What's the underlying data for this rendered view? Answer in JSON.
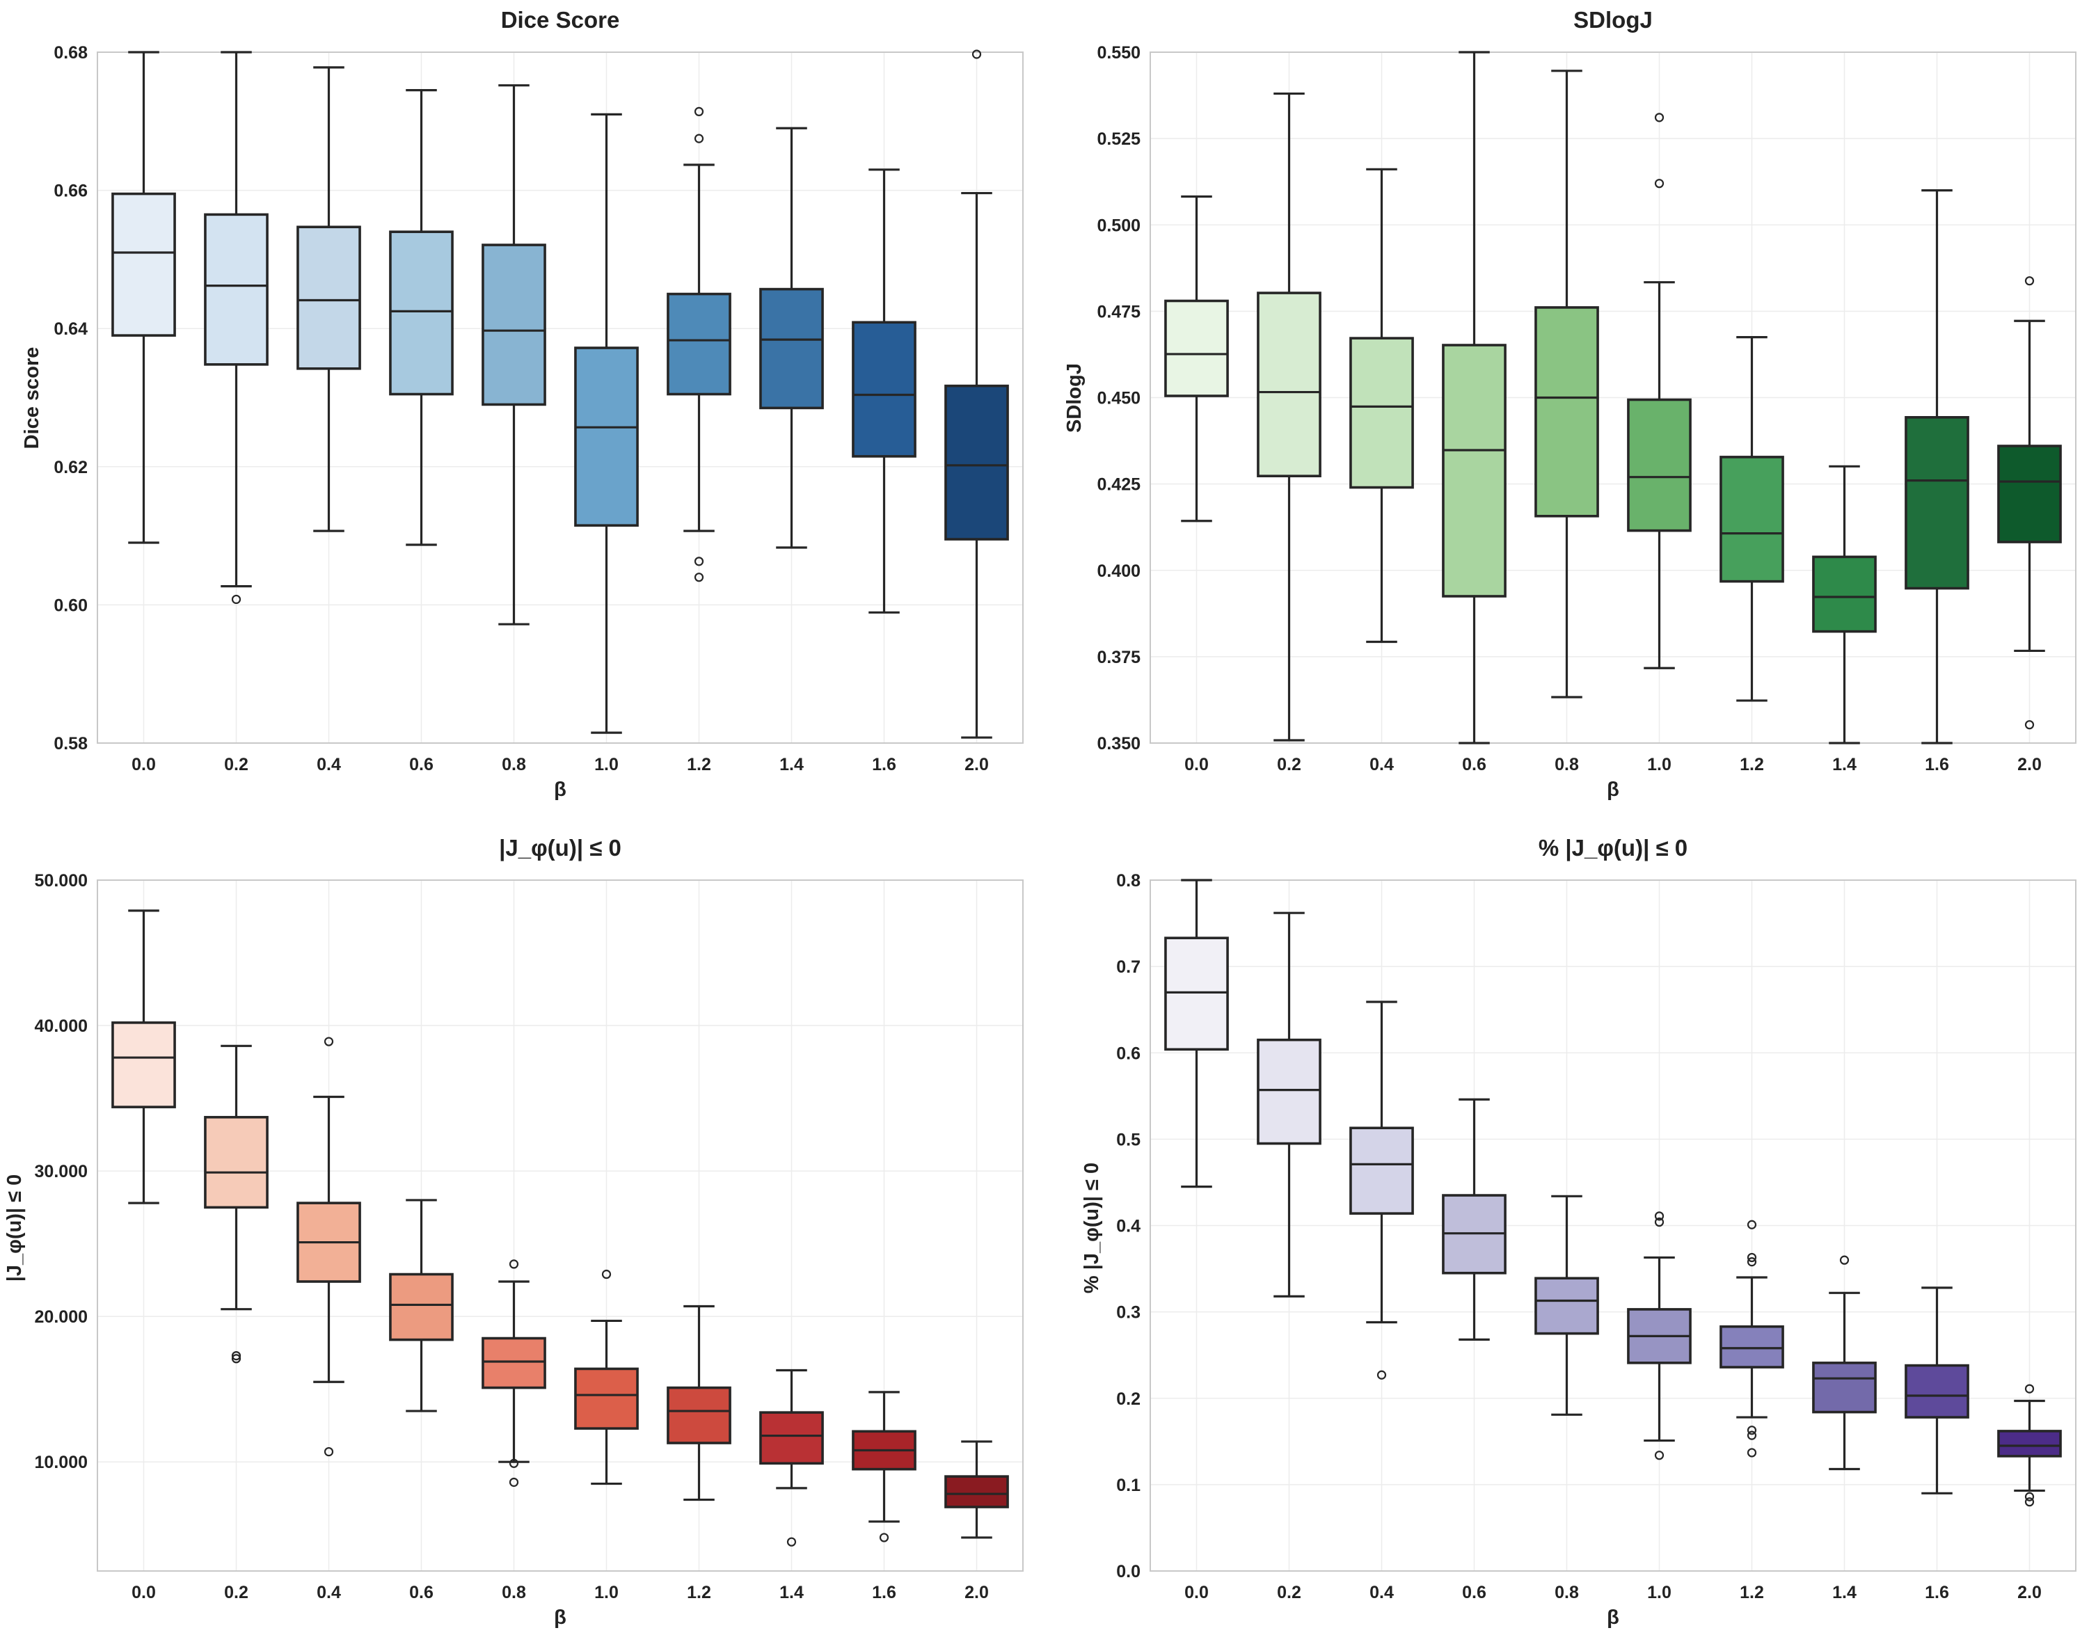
{
  "chart_data": [
    {
      "type": "box",
      "title": "Dice Score",
      "xlabel": "β",
      "ylabel": "Dice score",
      "categories": [
        "0.0",
        "0.2",
        "0.4",
        "0.6",
        "0.8",
        "1.0",
        "1.2",
        "1.4",
        "1.6",
        "2.0"
      ],
      "ylim": [
        0.58,
        0.68
      ],
      "yticks": [
        0.58,
        0.6,
        0.62,
        0.64,
        0.66,
        0.68
      ],
      "ytick_labels": [
        "0.58",
        "0.60",
        "0.62",
        "0.64",
        "0.66",
        "0.68"
      ],
      "colors": [
        "#e4edf6",
        "#d3e3f1",
        "#c3d7e8",
        "#a7c9df",
        "#88b4d2",
        "#6aa3cb",
        "#4e8ab8",
        "#3a73a6",
        "#275d96",
        "#1b4779"
      ],
      "boxes": [
        {
          "whislo": 0.609,
          "q1": 0.639,
          "med": 0.651,
          "q3": 0.6595,
          "whishi": 0.68,
          "fliers": []
        },
        {
          "whislo": 0.6027,
          "q1": 0.6348,
          "med": 0.6462,
          "q3": 0.6565,
          "whishi": 0.68,
          "fliers": [
            0.6008
          ]
        },
        {
          "whislo": 0.6107,
          "q1": 0.6342,
          "med": 0.6441,
          "q3": 0.6547,
          "whishi": 0.6778,
          "fliers": []
        },
        {
          "whislo": 0.6087,
          "q1": 0.6305,
          "med": 0.6425,
          "q3": 0.654,
          "whishi": 0.6745,
          "fliers": []
        },
        {
          "whislo": 0.5972,
          "q1": 0.629,
          "med": 0.6397,
          "q3": 0.6521,
          "whishi": 0.6752,
          "fliers": []
        },
        {
          "whislo": 0.5815,
          "q1": 0.6115,
          "med": 0.6257,
          "q3": 0.6372,
          "whishi": 0.671,
          "fliers": []
        },
        {
          "whislo": 0.6107,
          "q1": 0.6305,
          "med": 0.6383,
          "q3": 0.645,
          "whishi": 0.6637,
          "fliers": [
            0.6063,
            0.604,
            0.6675,
            0.6714
          ]
        },
        {
          "whislo": 0.6083,
          "q1": 0.6285,
          "med": 0.6384,
          "q3": 0.6457,
          "whishi": 0.669,
          "fliers": []
        },
        {
          "whislo": 0.5989,
          "q1": 0.6215,
          "med": 0.6304,
          "q3": 0.6409,
          "whishi": 0.663,
          "fliers": []
        },
        {
          "whislo": 0.5808,
          "q1": 0.6095,
          "med": 0.6202,
          "q3": 0.6317,
          "whishi": 0.6596,
          "fliers": [
            0.6797
          ]
        }
      ]
    },
    {
      "type": "box",
      "title": "SDlogJ",
      "xlabel": "β",
      "ylabel": "SDlogJ",
      "categories": [
        "0.0",
        "0.2",
        "0.4",
        "0.6",
        "0.8",
        "1.0",
        "1.2",
        "1.4",
        "1.6",
        "2.0"
      ],
      "ylim": [
        0.35,
        0.55
      ],
      "yticks": [
        0.35,
        0.375,
        0.4,
        0.425,
        0.45,
        0.475,
        0.5,
        0.525,
        0.55
      ],
      "ytick_labels": [
        "0.350",
        "0.375",
        "0.400",
        "0.425",
        "0.450",
        "0.475",
        "0.500",
        "0.525",
        "0.550"
      ],
      "colors": [
        "#e8f5e4",
        "#d7ecd2",
        "#c1e2ba",
        "#a9d5a0",
        "#8ac483",
        "#69b26b",
        "#47a05c",
        "#2e8a4a",
        "#1f6f3c",
        "#0e5a2c"
      ],
      "boxes": [
        {
          "whislo": 0.4143,
          "q1": 0.4505,
          "med": 0.4626,
          "q3": 0.478,
          "whishi": 0.5082,
          "fliers": []
        },
        {
          "whislo": 0.3508,
          "q1": 0.4273,
          "med": 0.4516,
          "q3": 0.4803,
          "whishi": 0.538,
          "fliers": []
        },
        {
          "whislo": 0.3793,
          "q1": 0.424,
          "med": 0.4474,
          "q3": 0.4672,
          "whishi": 0.5161,
          "fliers": []
        },
        {
          "whislo": 0.35,
          "q1": 0.3925,
          "med": 0.4348,
          "q3": 0.4652,
          "whishi": 0.55,
          "fliers": []
        },
        {
          "whislo": 0.3633,
          "q1": 0.4157,
          "med": 0.45,
          "q3": 0.4761,
          "whishi": 0.5446,
          "fliers": []
        },
        {
          "whislo": 0.3717,
          "q1": 0.4115,
          "med": 0.427,
          "q3": 0.4494,
          "whishi": 0.4834,
          "fliers": [
            0.512,
            0.5311
          ]
        },
        {
          "whislo": 0.3623,
          "q1": 0.3968,
          "med": 0.4107,
          "q3": 0.4328,
          "whishi": 0.4675,
          "fliers": []
        },
        {
          "whislo": 0.35,
          "q1": 0.3823,
          "med": 0.3923,
          "q3": 0.4039,
          "whishi": 0.4301,
          "fliers": []
        },
        {
          "whislo": 0.35,
          "q1": 0.3948,
          "med": 0.426,
          "q3": 0.4443,
          "whishi": 0.51,
          "fliers": []
        },
        {
          "whislo": 0.3767,
          "q1": 0.4082,
          "med": 0.4257,
          "q3": 0.436,
          "whishi": 0.4722,
          "fliers": [
            0.3553,
            0.4838
          ]
        }
      ]
    },
    {
      "type": "box",
      "title": "|J_φ(u)| ≤ 0",
      "xlabel": "β",
      "ylabel": "|J_φ(u)| ≤ 0",
      "categories": [
        "0.0",
        "0.2",
        "0.4",
        "0.6",
        "0.8",
        "1.0",
        "1.2",
        "1.4",
        "1.6",
        "2.0"
      ],
      "ylim": [
        2500,
        50000
      ],
      "yticks": [
        10000,
        20000,
        30000,
        40000,
        50000
      ],
      "ytick_labels": [
        "10.000",
        "20.000",
        "30.000",
        "40.000",
        "50.000"
      ],
      "colors": [
        "#fbe3da",
        "#f6cbb8",
        "#f2b096",
        "#ec9b80",
        "#e8806a",
        "#dc5f4a",
        "#cd4a3e",
        "#b93134",
        "#a82429",
        "#8a1b21"
      ],
      "boxes": [
        {
          "whislo": 27800,
          "q1": 34400,
          "med": 37800,
          "q3": 40200,
          "whishi": 47900,
          "fliers": []
        },
        {
          "whislo": 20500,
          "q1": 27500,
          "med": 29900,
          "q3": 33700,
          "whishi": 38600,
          "fliers": [
            17100,
            17300
          ]
        },
        {
          "whislo": 15500,
          "q1": 22400,
          "med": 25100,
          "q3": 27800,
          "whishi": 35100,
          "fliers": [
            10700,
            38900
          ]
        },
        {
          "whislo": 13500,
          "q1": 18400,
          "med": 20800,
          "q3": 22900,
          "whishi": 28000,
          "fliers": []
        },
        {
          "whislo": 10000,
          "q1": 15100,
          "med": 16900,
          "q3": 18500,
          "whishi": 22400,
          "fliers": [
            8600,
            9900,
            23600
          ]
        },
        {
          "whislo": 8500,
          "q1": 12300,
          "med": 14600,
          "q3": 16400,
          "whishi": 19700,
          "fliers": [
            22900
          ]
        },
        {
          "whislo": 7400,
          "q1": 11300,
          "med": 13500,
          "q3": 15100,
          "whishi": 20700,
          "fliers": []
        },
        {
          "whislo": 8200,
          "q1": 9900,
          "med": 11800,
          "q3": 13400,
          "whishi": 16300,
          "fliers": [
            4500
          ]
        },
        {
          "whislo": 5900,
          "q1": 9500,
          "med": 10800,
          "q3": 12100,
          "whishi": 14800,
          "fliers": [
            4800
          ]
        },
        {
          "whislo": 4800,
          "q1": 6900,
          "med": 7800,
          "q3": 9000,
          "whishi": 11400,
          "fliers": []
        }
      ]
    },
    {
      "type": "box",
      "title": "% |J_φ(u)| ≤ 0",
      "xlabel": "β",
      "ylabel": "% |J_φ(u)| ≤ 0",
      "categories": [
        "0.0",
        "0.2",
        "0.4",
        "0.6",
        "0.8",
        "1.0",
        "1.2",
        "1.4",
        "1.6",
        "2.0"
      ],
      "ylim": [
        0.0,
        0.8
      ],
      "yticks": [
        0.0,
        0.1,
        0.2,
        0.3,
        0.4,
        0.5,
        0.6,
        0.7,
        0.8
      ],
      "ytick_labels": [
        "0.0",
        "0.1",
        "0.2",
        "0.3",
        "0.4",
        "0.5",
        "0.6",
        "0.7",
        "0.8"
      ],
      "colors": [
        "#f1f0f6",
        "#e5e4f0",
        "#d4d4e8",
        "#bfbeda",
        "#aaa8cf",
        "#9794c3",
        "#8581bb",
        "#736aaa",
        "#5e4a9b",
        "#4c2c88"
      ],
      "boxes": [
        {
          "whislo": 0.445,
          "q1": 0.604,
          "med": 0.67,
          "q3": 0.733,
          "whishi": 0.8,
          "fliers": []
        },
        {
          "whislo": 0.318,
          "q1": 0.495,
          "med": 0.557,
          "q3": 0.615,
          "whishi": 0.762,
          "fliers": []
        },
        {
          "whislo": 0.288,
          "q1": 0.414,
          "med": 0.471,
          "q3": 0.513,
          "whishi": 0.659,
          "fliers": [
            0.227
          ]
        },
        {
          "whislo": 0.268,
          "q1": 0.345,
          "med": 0.391,
          "q3": 0.435,
          "whishi": 0.546,
          "fliers": []
        },
        {
          "whislo": 0.181,
          "q1": 0.275,
          "med": 0.313,
          "q3": 0.339,
          "whishi": 0.434,
          "fliers": []
        },
        {
          "whislo": 0.151,
          "q1": 0.241,
          "med": 0.272,
          "q3": 0.303,
          "whishi": 0.363,
          "fliers": [
            0.134,
            0.404,
            0.411
          ]
        },
        {
          "whislo": 0.178,
          "q1": 0.236,
          "med": 0.258,
          "q3": 0.283,
          "whishi": 0.34,
          "fliers": [
            0.137,
            0.157,
            0.163,
            0.358,
            0.363,
            0.401
          ]
        },
        {
          "whislo": 0.118,
          "q1": 0.184,
          "med": 0.223,
          "q3": 0.241,
          "whishi": 0.322,
          "fliers": [
            0.36
          ]
        },
        {
          "whislo": 0.09,
          "q1": 0.178,
          "med": 0.203,
          "q3": 0.238,
          "whishi": 0.328,
          "fliers": []
        },
        {
          "whislo": 0.093,
          "q1": 0.133,
          "med": 0.145,
          "q3": 0.162,
          "whishi": 0.197,
          "fliers": [
            0.08,
            0.086,
            0.211
          ]
        }
      ]
    }
  ]
}
